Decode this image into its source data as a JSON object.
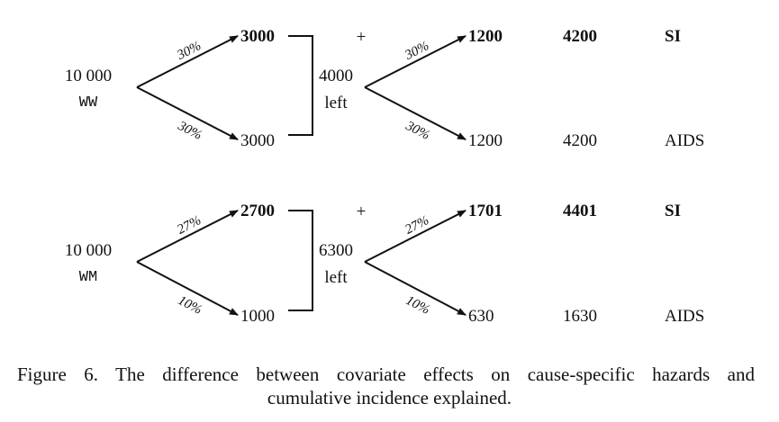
{
  "blocks": [
    {
      "start_count": "10 000",
      "group": "WW",
      "upper_pct": "30%",
      "lower_pct": "30%",
      "upper_value": "3000",
      "lower_value": "3000",
      "plus": "+",
      "left_count": "4000",
      "left_label": "left",
      "upper_pct2": "30%",
      "lower_pct2": "30%",
      "upper_value2": "1200",
      "lower_value2": "1200",
      "upper_total": "4200",
      "lower_total": "4200",
      "upper_event": "SI",
      "lower_event": "AIDS"
    },
    {
      "start_count": "10 000",
      "group": "WM",
      "upper_pct": "27%",
      "lower_pct": "10%",
      "upper_value": "2700",
      "lower_value": "1000",
      "plus": "+",
      "left_count": "6300",
      "left_label": "left",
      "upper_pct2": "27%",
      "lower_pct2": "10%",
      "upper_value2": "1701",
      "lower_value2": "630",
      "upper_total": "4401",
      "lower_total": "1630",
      "upper_event": "SI",
      "lower_event": "AIDS"
    }
  ],
  "caption": {
    "line1": "Figure 6. The difference between covariate effects on cause-specific hazards and",
    "line2": "cumulative incidence explained."
  }
}
